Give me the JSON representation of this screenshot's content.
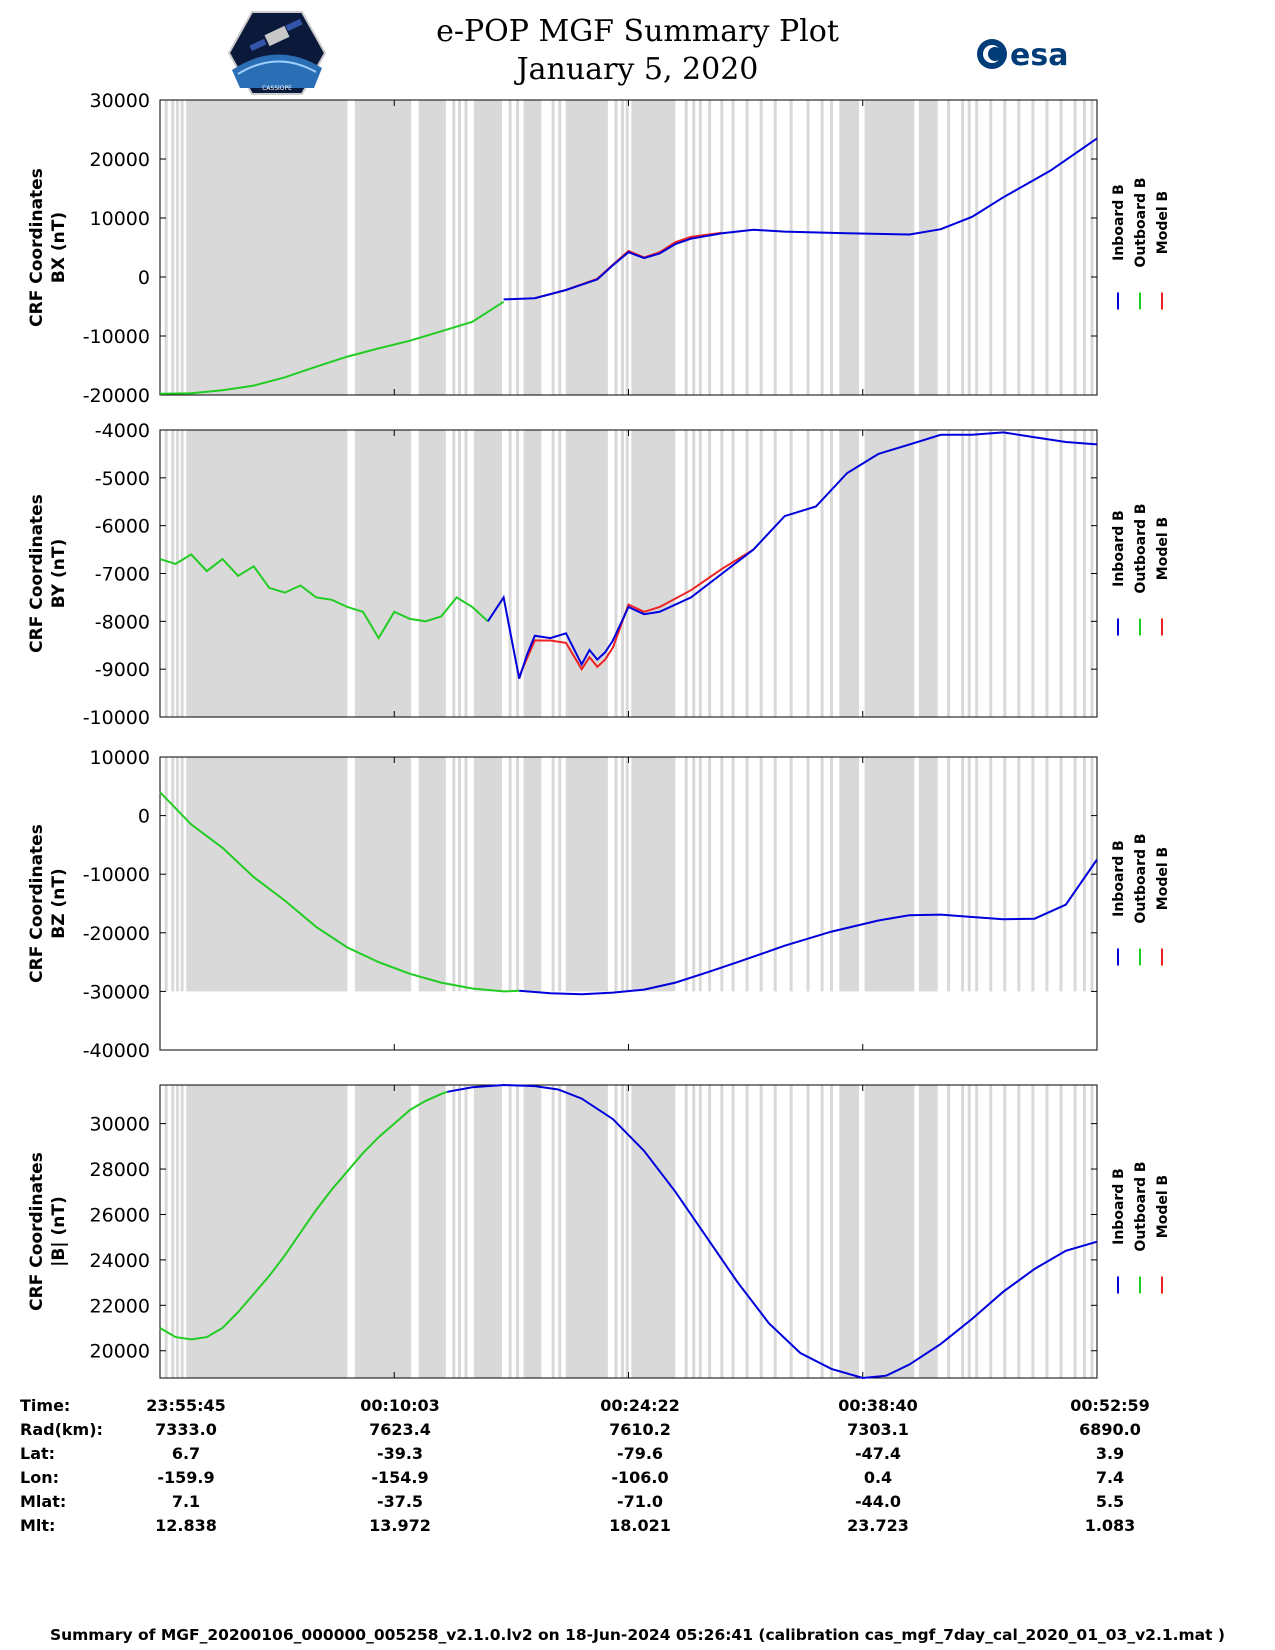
{
  "header": {
    "title_line1": "e-POP MGF Summary Plot",
    "title_line2": "January 5, 2020",
    "left_logo_text": "CASSIOPE",
    "right_logo_text": "esa"
  },
  "colors": {
    "inboard": "#0000dd",
    "outboard": "#22cc22",
    "model": "#ee2222",
    "shade": "#d9d9d9"
  },
  "legend": [
    "Inboard B",
    "Outboard B",
    "Model B"
  ],
  "chart_data": [
    {
      "type": "line",
      "name": "BX",
      "ylabel_line1": "CRF Coordinates",
      "ylabel_line2": "BX (nT)",
      "ylim": [
        -20000,
        30000
      ],
      "yticks": [
        30000,
        20000,
        10000,
        0,
        -10000,
        -20000
      ],
      "ytick_labels": [
        "30000",
        "20000",
        "10000",
        "0",
        "-10000",
        "-20000"
      ],
      "x_minutes": [
        0,
        5,
        10,
        15,
        20,
        25,
        30,
        35,
        40,
        45,
        50,
        55,
        60
      ],
      "outboard": {
        "x": [
          0,
          2,
          4,
          6,
          8,
          10,
          12,
          14,
          16,
          18,
          20,
          22
        ],
        "y": [
          -19800,
          -19700,
          -19200,
          -18400,
          -17000,
          -15200,
          -13500,
          -12100,
          -10800,
          -9200,
          -7600,
          -4200
        ]
      },
      "inboard": {
        "x": [
          22,
          24,
          26,
          28,
          29,
          30,
          31,
          32,
          33,
          34,
          36,
          38,
          40,
          44,
          48,
          50,
          52,
          54,
          57,
          60
        ],
        "y": [
          -3800,
          -3600,
          -2200,
          -400,
          2000,
          4200,
          3200,
          4000,
          5600,
          6500,
          7400,
          8000,
          7700,
          7400,
          7200,
          8100,
          10200,
          13500,
          18000,
          23500
        ]
      },
      "model": {
        "x": [
          24,
          26,
          28,
          29,
          30,
          31,
          32,
          33,
          34,
          36
        ],
        "y": [
          -3600,
          -2200,
          -300,
          2100,
          4400,
          3300,
          4200,
          5900,
          6800,
          7500
        ]
      }
    },
    {
      "type": "line",
      "name": "BY",
      "ylabel_line1": "CRF Coordinates",
      "ylabel_line2": "BY (nT)",
      "ylim": [
        -10000,
        -4000
      ],
      "yticks": [
        -4000,
        -5000,
        -6000,
        -7000,
        -8000,
        -9000,
        -10000
      ],
      "ytick_labels": [
        "-4000",
        "-5000",
        "-6000",
        "-7000",
        "-8000",
        "-9000",
        "-10000"
      ],
      "x_minutes": [
        0,
        5,
        10,
        15,
        20,
        25,
        30,
        35,
        40,
        45,
        50,
        55,
        60
      ],
      "outboard": {
        "x": [
          0,
          1,
          2,
          3,
          4,
          5,
          6,
          7,
          8,
          9,
          10,
          11,
          12,
          13,
          14,
          15,
          16,
          17,
          18,
          19,
          20,
          21
        ],
        "y": [
          -6700,
          -6800,
          -6600,
          -6950,
          -6700,
          -7050,
          -6850,
          -7300,
          -7400,
          -7250,
          -7500,
          -7550,
          -7700,
          -7800,
          -8350,
          -7800,
          -7950,
          -8000,
          -7900,
          -7500,
          -7700,
          -8000
        ]
      },
      "inboard": {
        "x": [
          21,
          22,
          23,
          23.5,
          24,
          25,
          26,
          27,
          27.5,
          28,
          28.5,
          29,
          30,
          31,
          32,
          34,
          36,
          38,
          40,
          42,
          44,
          45,
          46,
          48,
          50,
          52,
          54,
          56,
          58,
          60
        ],
        "y": [
          -8000,
          -7500,
          -9200,
          -8700,
          -8300,
          -8350,
          -8250,
          -8900,
          -8600,
          -8800,
          -8650,
          -8400,
          -7700,
          -7850,
          -7800,
          -7500,
          -7000,
          -6500,
          -5800,
          -5600,
          -4900,
          -4700,
          -4500,
          -4300,
          -4100,
          -4100,
          -4050,
          -4150,
          -4250,
          -4300
        ]
      },
      "model": {
        "x": [
          23,
          24,
          25,
          26,
          27,
          27.5,
          28,
          28.5,
          29,
          30,
          31,
          32,
          34,
          36,
          38
        ],
        "y": [
          -9150,
          -8400,
          -8400,
          -8450,
          -9000,
          -8750,
          -8950,
          -8800,
          -8550,
          -7650,
          -7800,
          -7700,
          -7350,
          -6900,
          -6500
        ]
      }
    },
    {
      "type": "line",
      "name": "BZ",
      "ylabel_line1": "CRF Coordinates",
      "ylabel_line2": "BZ (nT)",
      "ylim": [
        -40000,
        10000
      ],
      "yticks": [
        10000,
        0,
        -10000,
        -20000,
        -30000,
        -40000
      ],
      "ytick_labels": [
        "10000",
        "0",
        "-10000",
        "-20000",
        "-30000",
        "-40000"
      ],
      "x_minutes": [
        0,
        5,
        10,
        15,
        20,
        25,
        30,
        35,
        40,
        45,
        50,
        55,
        60
      ],
      "outboard": {
        "x": [
          0,
          2,
          4,
          6,
          8,
          10,
          12,
          14,
          16,
          18,
          20,
          22,
          23
        ],
        "y": [
          4000,
          -1500,
          -5500,
          -10500,
          -14500,
          -19000,
          -22500,
          -25000,
          -27000,
          -28500,
          -29500,
          -30000,
          -29900
        ]
      },
      "inboard": {
        "x": [
          23,
          25,
          27,
          29,
          31,
          33,
          35,
          37,
          40,
          43,
          46,
          48,
          50,
          52,
          54,
          56,
          58,
          60
        ],
        "y": [
          -29900,
          -30300,
          -30500,
          -30200,
          -29700,
          -28500,
          -26800,
          -25000,
          -22200,
          -19800,
          -17900,
          -17000,
          -16900,
          -17300,
          -17700,
          -17600,
          -15200,
          -7500
        ]
      },
      "model": {
        "x": [],
        "y": []
      }
    },
    {
      "type": "line",
      "name": "|B|",
      "ylabel_line1": "CRF Coordinates",
      "ylabel_line2": "|B| (nT)",
      "ylim": [
        18800,
        31700
      ],
      "yticks": [
        30000,
        28000,
        26000,
        24000,
        22000,
        20000
      ],
      "ytick_labels": [
        "30000",
        "28000",
        "26000",
        "24000",
        "22000",
        "20000"
      ],
      "x_minutes": [
        0,
        5,
        10,
        15,
        20,
        25,
        30,
        35,
        40,
        45,
        50,
        55,
        60
      ],
      "outboard": {
        "x": [
          0,
          1,
          2,
          3,
          4,
          5,
          6,
          7,
          8,
          9,
          10,
          11,
          12,
          13,
          14,
          15,
          16,
          17,
          18,
          18.4
        ],
        "y": [
          21000,
          20600,
          20500,
          20600,
          21000,
          21700,
          22500,
          23300,
          24200,
          25200,
          26200,
          27100,
          27900,
          28700,
          29400,
          30000,
          30600,
          31000,
          31300,
          31400
        ]
      },
      "inboard": {
        "x": [
          18.4,
          20,
          22,
          24,
          25.5,
          27,
          29,
          31,
          33,
          35,
          37,
          39,
          41,
          43,
          45,
          46.5,
          48,
          50,
          52,
          54,
          56,
          58,
          60
        ],
        "y": [
          31400,
          31600,
          31700,
          31650,
          31500,
          31100,
          30200,
          28800,
          27000,
          25000,
          23000,
          21200,
          19900,
          19200,
          18800,
          18900,
          19400,
          20300,
          21400,
          22600,
          23600,
          24400,
          24800
        ]
      },
      "model": {
        "x": [],
        "y": []
      }
    }
  ],
  "table": {
    "row_labels": [
      "Time:",
      "Rad(km):",
      "Lat:",
      "Lon:",
      "Mlat:",
      "Mlt:"
    ],
    "columns": [
      [
        "23:55:45",
        "7333.0",
        "6.7",
        "-159.9",
        "7.1",
        "12.838"
      ],
      [
        "00:10:03",
        "7623.4",
        "-39.3",
        "-154.9",
        "-37.5",
        "13.972"
      ],
      [
        "00:24:22",
        "7610.2",
        "-79.6",
        "-106.0",
        "-71.0",
        "18.021"
      ],
      [
        "00:38:40",
        "7303.1",
        "-47.4",
        "0.4",
        "-44.0",
        "23.723"
      ],
      [
        "00:52:59",
        "6890.0",
        "3.9",
        "7.4",
        "5.5",
        "1.083"
      ]
    ]
  },
  "footer": "Summary of MGF_20200106_000000_005258_v2.1.0.lv2 on 18-Jun-2024 05:26:41 (calibration cas_mgf_7day_cal_2020_01_03_v2.1.mat )"
}
